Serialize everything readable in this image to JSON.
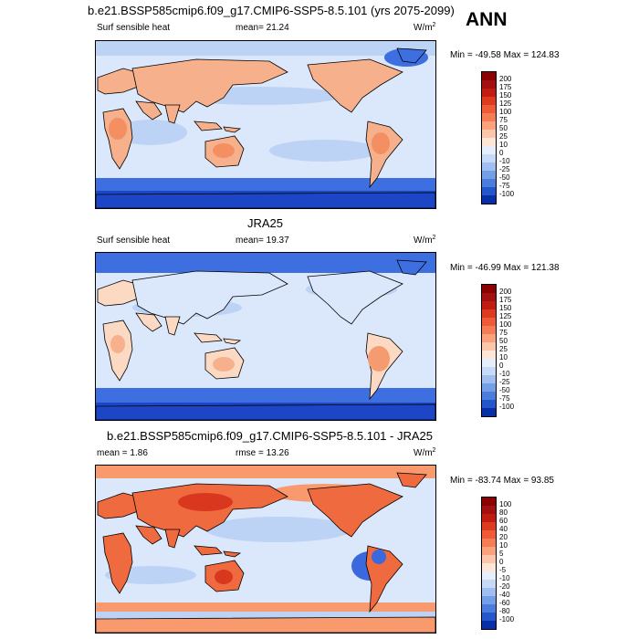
{
  "header": {
    "ann_label": "ANN"
  },
  "panels": [
    {
      "id": "model",
      "title": "b.e21.BSSP585cmip6.f09_g17.CMIP6-SSP5-8.5.101 (yrs 2075-2099)",
      "left_label": "Surf sensible heat",
      "center_label": "mean=  21.24",
      "units": "W/m",
      "units_exp": "2",
      "minmax": "Min = -49.58 Max = 124.83",
      "colorbar_labels": [
        "200",
        "175",
        "150",
        "125",
        "100",
        "75",
        "50",
        "25",
        "10",
        "0",
        "-10",
        "-25",
        "-50",
        "-75",
        "-100"
      ],
      "colorbar_colors": [
        "#8b0000",
        "#a31010",
        "#c21c12",
        "#dd3a1e",
        "#ef5b35",
        "#f57d54",
        "#f9a27c",
        "#fcc6aa",
        "#fde6d6",
        "#e6eefb",
        "#c6d9f6",
        "#9ebff0",
        "#739fe6",
        "#4a7ddc",
        "#2456cc",
        "#082fa8"
      ]
    },
    {
      "id": "obs",
      "title": "JRA25",
      "left_label": "Surf sensible heat",
      "center_label": "mean=  19.37",
      "units": "W/m",
      "units_exp": "2",
      "minmax": "Min = -46.99 Max = 121.38",
      "colorbar_labels": [
        "200",
        "175",
        "150",
        "125",
        "100",
        "75",
        "50",
        "25",
        "10",
        "0",
        "-10",
        "-25",
        "-50",
        "-75",
        "-100"
      ],
      "colorbar_colors": [
        "#8b0000",
        "#a31010",
        "#c21c12",
        "#dd3a1e",
        "#ef5b35",
        "#f57d54",
        "#f9a27c",
        "#fcc6aa",
        "#fde6d6",
        "#e6eefb",
        "#c6d9f6",
        "#9ebff0",
        "#739fe6",
        "#4a7ddc",
        "#2456cc",
        "#082fa8"
      ]
    },
    {
      "id": "diff",
      "title": "b.e21.BSSP585cmip6.f09_g17.CMIP6-SSP5-8.5.101 - JRA25",
      "left_label": "mean =   1.86",
      "center_label": "rmse =  13.26",
      "units": "W/m",
      "units_exp": "2",
      "minmax": "Min = -83.74 Max =  93.85",
      "colorbar_labels": [
        "100",
        "80",
        "60",
        "40",
        "20",
        "10",
        "5",
        "0",
        "-5",
        "-10",
        "-20",
        "-40",
        "-60",
        "-80",
        "-100"
      ],
      "colorbar_colors": [
        "#8b0000",
        "#a31010",
        "#c21c12",
        "#dd3a1e",
        "#ef5b35",
        "#f57d54",
        "#f9a27c",
        "#fcc6aa",
        "#fde6d6",
        "#e6eefb",
        "#c6d9f6",
        "#9ebff0",
        "#739fe6",
        "#4a7ddc",
        "#2456cc",
        "#082fa8"
      ]
    }
  ],
  "colors": {
    "land_warm": "#f7b08c",
    "land_light": "#fcd9c2",
    "ocean_light": "#dbe7fa",
    "ocean_mid": "#bcd3f5",
    "polar_blue": "#3d6fe0",
    "polar_dark": "#1c46c6",
    "diff_red": "#ef6a3e",
    "diff_orange": "#f99a6e",
    "coast": "#000000"
  }
}
